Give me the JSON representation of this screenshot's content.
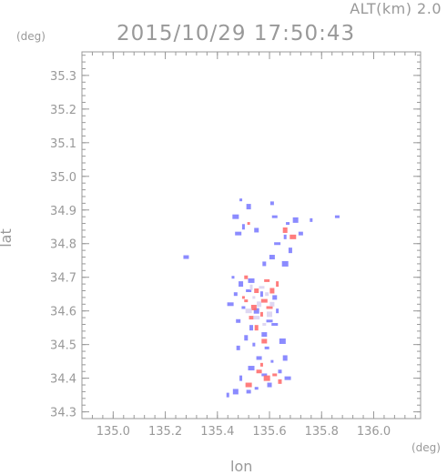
{
  "chart_data": {
    "type": "scatter",
    "title": "2015/10/29 17:50:43",
    "subtitle": "ALT(km) 2.0",
    "xlabel": "lon",
    "ylabel": "lat",
    "x_unit": "(deg)",
    "y_unit": "(deg)",
    "xlim": [
      134.88,
      136.18
    ],
    "ylim": [
      34.28,
      35.37
    ],
    "xticks": [
      "135.0",
      "135.2",
      "135.4",
      "135.6",
      "135.8",
      "136.0"
    ],
    "yticks": [
      "34.3",
      "34.4",
      "34.5",
      "34.6",
      "34.7",
      "34.8",
      "34.9",
      "35.0",
      "35.1",
      "35.2",
      "35.3"
    ],
    "colors": {
      "positive": "#ff6666",
      "negative": "#7777ff",
      "axis": "#999999"
    },
    "series": [
      {
        "values_desc": "negative",
        "points": [
          [
            135.49,
            34.93
          ],
          [
            135.52,
            34.91
          ],
          [
            135.47,
            34.88
          ],
          [
            135.61,
            34.92
          ],
          [
            135.62,
            34.88
          ],
          [
            135.5,
            34.85
          ],
          [
            135.55,
            34.84
          ],
          [
            135.48,
            34.83
          ],
          [
            135.67,
            34.86
          ],
          [
            135.7,
            34.87
          ],
          [
            135.66,
            34.82
          ],
          [
            135.72,
            34.83
          ],
          [
            135.63,
            34.8
          ],
          [
            135.68,
            34.78
          ],
          [
            135.61,
            34.76
          ],
          [
            135.76,
            34.87
          ],
          [
            135.86,
            34.88
          ],
          [
            135.66,
            34.74
          ],
          [
            135.58,
            34.74
          ],
          [
            135.28,
            34.76
          ],
          [
            135.46,
            34.7
          ],
          [
            135.49,
            34.68
          ],
          [
            135.53,
            34.69
          ],
          [
            135.47,
            34.65
          ],
          [
            135.52,
            34.66
          ],
          [
            135.57,
            34.65
          ],
          [
            135.62,
            34.64
          ],
          [
            135.45,
            34.62
          ],
          [
            135.5,
            34.61
          ],
          [
            135.55,
            34.6
          ],
          [
            135.63,
            34.6
          ],
          [
            135.48,
            34.57
          ],
          [
            135.6,
            34.57
          ],
          [
            135.53,
            34.55
          ],
          [
            135.58,
            34.53
          ],
          [
            135.54,
            34.5
          ],
          [
            135.59,
            34.49
          ],
          [
            135.65,
            34.51
          ],
          [
            135.48,
            34.49
          ],
          [
            135.56,
            34.46
          ],
          [
            135.61,
            34.45
          ],
          [
            135.66,
            34.46
          ],
          [
            135.53,
            34.43
          ],
          [
            135.64,
            34.42
          ],
          [
            135.58,
            34.41
          ],
          [
            135.49,
            34.4
          ],
          [
            135.6,
            34.38
          ],
          [
            135.67,
            34.4
          ],
          [
            135.55,
            34.37
          ],
          [
            135.47,
            34.36
          ],
          [
            135.44,
            34.35
          ],
          [
            135.52,
            34.36
          ],
          [
            135.62,
            34.56
          ],
          [
            135.51,
            34.52
          ]
        ]
      },
      {
        "values_desc": "positive",
        "points": [
          [
            135.52,
            34.86
          ],
          [
            135.66,
            34.84
          ],
          [
            135.69,
            34.82
          ],
          [
            135.51,
            34.7
          ],
          [
            135.59,
            34.69
          ],
          [
            135.63,
            34.68
          ],
          [
            135.55,
            34.66
          ],
          [
            135.58,
            34.63
          ],
          [
            135.51,
            34.63
          ],
          [
            135.54,
            34.61
          ],
          [
            135.57,
            34.59
          ],
          [
            135.53,
            34.58
          ],
          [
            135.6,
            34.61
          ],
          [
            135.55,
            34.55
          ],
          [
            135.58,
            34.51
          ],
          [
            135.57,
            34.44
          ],
          [
            135.62,
            34.41
          ],
          [
            135.59,
            34.4
          ],
          [
            135.64,
            34.39
          ],
          [
            135.56,
            34.42
          ],
          [
            135.5,
            34.64
          ],
          [
            135.61,
            34.66
          ],
          [
            135.52,
            34.38
          ]
        ]
      },
      {
        "values_desc": "near-zero",
        "points": [
          [
            135.54,
            34.64
          ],
          [
            135.56,
            34.62
          ],
          [
            135.52,
            34.6
          ],
          [
            135.59,
            34.65
          ],
          [
            135.57,
            34.67
          ],
          [
            135.53,
            34.67
          ],
          [
            135.61,
            34.62
          ],
          [
            135.55,
            34.58
          ],
          [
            135.58,
            34.56
          ],
          [
            135.6,
            34.59
          ]
        ]
      }
    ]
  }
}
